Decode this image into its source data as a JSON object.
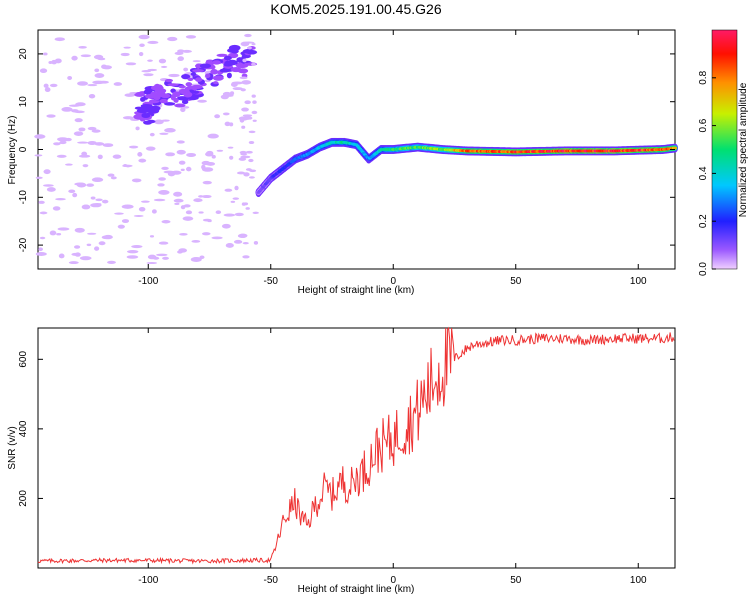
{
  "figure": {
    "title": "KOM5.2025.191.00.45.G26"
  },
  "colors": {
    "snr_line": "#ee3333",
    "specgram_scatter": "#a14cff",
    "specgram_light": "#d9b3ff",
    "colormap": [
      "#9b59ff",
      "#3b3bff",
      "#00c8ff",
      "#00e070",
      "#ffe000",
      "#ff8000",
      "#ff0000",
      "#ff1a66"
    ]
  },
  "chart_data": [
    {
      "type": "heatmap",
      "title": "",
      "xlabel": "Height of straight line (km)",
      "ylabel": "Frequency (Hz)",
      "xlim": [
        -145,
        115
      ],
      "ylim": [
        -25,
        25
      ],
      "xticks": [
        -100,
        -50,
        0,
        50,
        100
      ],
      "yticks": [
        -20,
        -10,
        0,
        10,
        20
      ],
      "colorbar": {
        "label": "Normalized spectral amplitude",
        "range": [
          0,
          1
        ],
        "ticks": [
          "0.0",
          "0.2",
          "0.4",
          "0.6",
          "0.8"
        ]
      },
      "ridge": {
        "description_x": [
          -55,
          -50,
          -45,
          -40,
          -35,
          -30,
          -25,
          -20,
          -15,
          -10,
          -5,
          0,
          10,
          20,
          30,
          50,
          70,
          90,
          110,
          115
        ],
        "frequency": [
          -9,
          -6,
          -4,
          -2,
          -1,
          0.5,
          1.5,
          1.5,
          1,
          -2,
          0,
          0,
          0.5,
          0,
          -0.3,
          -0.5,
          -0.3,
          -0.3,
          0,
          0.3
        ],
        "amplitude": [
          0.1,
          0.15,
          0.2,
          0.25,
          0.3,
          0.35,
          0.4,
          0.45,
          0.35,
          0.3,
          0.4,
          0.5,
          0.55,
          0.6,
          0.8,
          0.85,
          0.9,
          0.9,
          0.85,
          0.8
        ]
      },
      "noise_band": {
        "x_range": [
          -145,
          -58
        ],
        "upper_cluster": {
          "x": [
            -105,
            -60
          ],
          "freq": [
            8,
            22
          ]
        }
      }
    },
    {
      "type": "line",
      "title": "",
      "xlabel": "Height of straight line (km)",
      "ylabel": "SNR (v/v)",
      "xlim": [
        -145,
        115
      ],
      "ylim": [
        0,
        690
      ],
      "xticks": [
        -100,
        -50,
        0,
        50,
        100
      ],
      "yticks": [
        200,
        400,
        600
      ],
      "series": [
        {
          "x": [
            -145,
            -120,
            -100,
            -80,
            -60,
            -50,
            -48,
            -45,
            -42,
            -40,
            -38,
            -35,
            -32,
            -30,
            -28,
            -25,
            -22,
            -20,
            -18,
            -15,
            -12,
            -10,
            -8,
            -5,
            -2,
            0,
            2,
            5,
            8,
            10,
            12,
            15,
            18,
            20,
            22,
            25,
            28,
            30,
            32,
            35,
            40,
            45,
            50,
            60,
            70,
            80,
            90,
            100,
            110,
            115
          ],
          "y": [
            20,
            22,
            22,
            20,
            22,
            22,
            60,
            130,
            170,
            190,
            150,
            120,
            180,
            200,
            230,
            210,
            240,
            250,
            230,
            260,
            280,
            300,
            330,
            350,
            360,
            370,
            390,
            410,
            430,
            450,
            480,
            520,
            560,
            580,
            590,
            600,
            620,
            630,
            640,
            645,
            650,
            655,
            655,
            660,
            660,
            655,
            660,
            660,
            660,
            665
          ]
        }
      ]
    }
  ]
}
